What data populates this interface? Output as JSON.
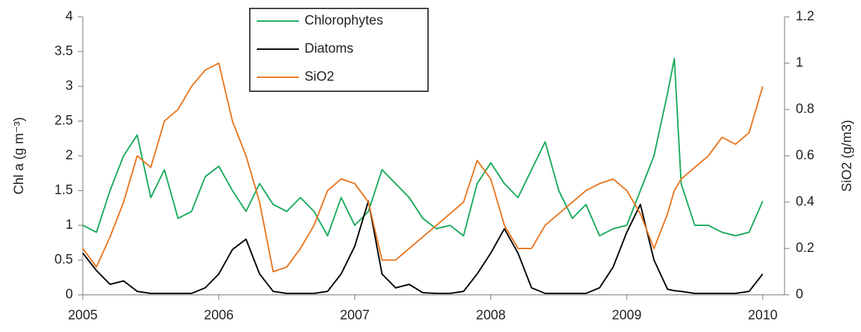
{
  "chart_data": {
    "type": "line",
    "y_label": "Chl a (g m⁻³)",
    "y2_label": "SiO2 (g/m3)",
    "x": [
      2005.0,
      2005.1,
      2005.2,
      2005.3,
      2005.4,
      2005.5,
      2005.6,
      2005.7,
      2005.8,
      2005.9,
      2006.0,
      2006.1,
      2006.2,
      2006.3,
      2006.4,
      2006.5,
      2006.6,
      2006.7,
      2006.8,
      2006.9,
      2007.0,
      2007.1,
      2007.2,
      2007.3,
      2007.4,
      2007.5,
      2007.6,
      2007.7,
      2007.8,
      2007.9,
      2008.0,
      2008.1,
      2008.2,
      2008.3,
      2008.4,
      2008.5,
      2008.6,
      2008.7,
      2008.8,
      2008.9,
      2009.0,
      2009.1,
      2009.2,
      2009.3,
      2009.35,
      2009.4,
      2009.5,
      2009.6,
      2009.7,
      2009.8,
      2009.9,
      2010.0
    ],
    "series": [
      {
        "name": "Chlorophytes",
        "color": "#1aab5c",
        "axis": "y",
        "values": [
          1.0,
          0.9,
          1.5,
          2.0,
          2.3,
          1.4,
          1.8,
          1.1,
          1.2,
          1.7,
          1.85,
          1.5,
          1.2,
          1.6,
          1.3,
          1.2,
          1.4,
          1.2,
          0.85,
          1.4,
          1.0,
          1.2,
          1.8,
          1.6,
          1.4,
          1.1,
          0.95,
          1.0,
          0.85,
          1.6,
          1.9,
          1.6,
          1.4,
          1.8,
          2.2,
          1.5,
          1.1,
          1.3,
          0.85,
          0.95,
          1.0,
          1.5,
          2.0,
          2.9,
          3.4,
          1.6,
          1.0,
          1.0,
          0.9,
          0.85,
          0.9,
          1.35
        ]
      },
      {
        "name": "Diatoms",
        "color": "#000000",
        "axis": "y",
        "values": [
          0.6,
          0.35,
          0.15,
          0.2,
          0.05,
          0.02,
          0.02,
          0.02,
          0.02,
          0.1,
          0.3,
          0.65,
          0.8,
          0.3,
          0.05,
          0.02,
          0.02,
          0.02,
          0.05,
          0.3,
          0.7,
          1.35,
          0.3,
          0.1,
          0.15,
          0.03,
          0.02,
          0.02,
          0.05,
          0.3,
          0.6,
          0.95,
          0.6,
          0.1,
          0.02,
          0.02,
          0.02,
          0.02,
          0.1,
          0.4,
          0.9,
          1.3,
          0.5,
          0.08,
          0.06,
          0.05,
          0.02,
          0.02,
          0.02,
          0.02,
          0.05,
          0.3
        ]
      },
      {
        "name": "SiO2",
        "color": "#e87722",
        "axis": "y2",
        "values": [
          0.2,
          0.12,
          0.25,
          0.4,
          0.6,
          0.55,
          0.75,
          0.8,
          0.9,
          0.97,
          1.0,
          0.75,
          0.6,
          0.4,
          0.1,
          0.12,
          0.2,
          0.3,
          0.45,
          0.5,
          0.48,
          0.4,
          0.15,
          0.15,
          0.2,
          0.25,
          0.3,
          0.35,
          0.4,
          0.58,
          0.5,
          0.3,
          0.2,
          0.2,
          0.3,
          0.35,
          0.4,
          0.45,
          0.48,
          0.5,
          0.45,
          0.35,
          0.2,
          0.35,
          0.45,
          0.5,
          0.55,
          0.6,
          0.68,
          0.65,
          0.7,
          0.9
        ]
      }
    ],
    "xlim": [
      2005,
      2010.16
    ],
    "xticks": [
      2005,
      2006,
      2007,
      2008,
      2009,
      2010
    ],
    "ylim": [
      0,
      4
    ],
    "yticks": [
      0,
      0.5,
      1,
      1.5,
      2,
      2.5,
      3,
      3.5,
      4
    ],
    "y2lim": [
      0,
      1.2
    ],
    "y2ticks": [
      0,
      0.2,
      0.4,
      0.6,
      0.8,
      1,
      1.2
    ],
    "legend": "top-center"
  }
}
